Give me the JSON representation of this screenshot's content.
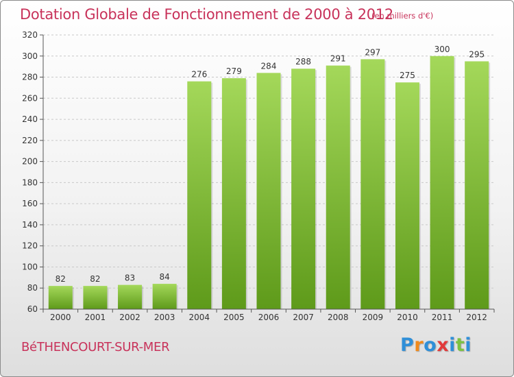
{
  "header": {
    "title": "Dotation Globale de Fonctionnement de 2000 à 2012",
    "subtitle": "(en milliers d'€)"
  },
  "footer": {
    "commune": "BéTHENCOURT-SUR-MER",
    "logo_letters": [
      "P",
      "r",
      "o",
      "x",
      "i",
      "t",
      "i"
    ],
    "logo_colors": [
      "#2f8fd8",
      "#f08a1c",
      "#2f8fd8",
      "#e23a3a",
      "#2f8fd8",
      "#7cc242",
      "#2f8fd8"
    ]
  },
  "colors": {
    "accent": "#c8325a",
    "bar_light": "#a4d85a",
    "bar_dark": "#5e9a1a"
  },
  "chart_data": {
    "type": "bar",
    "categories": [
      "2000",
      "2001",
      "2002",
      "2003",
      "2004",
      "2005",
      "2006",
      "2007",
      "2008",
      "2009",
      "2010",
      "2011",
      "2012"
    ],
    "values": [
      82,
      82,
      83,
      84,
      276,
      279,
      284,
      288,
      291,
      297,
      275,
      300,
      295
    ],
    "title": "Dotation Globale de Fonctionnement de 2000 à 2012",
    "subtitle": "(en milliers d'€)",
    "xlabel": "",
    "ylabel": "",
    "ylim": [
      60,
      320
    ],
    "yticks": [
      60,
      80,
      100,
      120,
      140,
      160,
      180,
      200,
      220,
      240,
      260,
      280,
      300,
      320
    ],
    "grid": true
  }
}
